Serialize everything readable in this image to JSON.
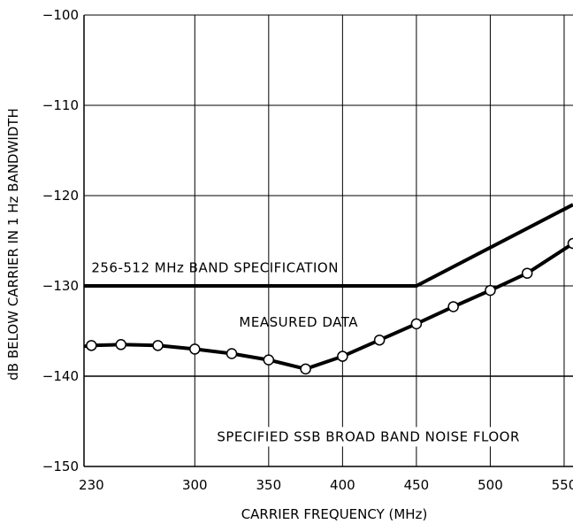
{
  "chart_data": {
    "type": "line",
    "xlabel": "CARRIER FREQUENCY (MHz)",
    "ylabel": "dB BELOW CARRIER IN 1 Hz BANDWIDTH",
    "xlim": [
      225,
      556
    ],
    "ylim": [
      -150,
      -100
    ],
    "x_ticks": [
      230,
      300,
      350,
      400,
      450,
      500,
      550
    ],
    "x_tick_labels": [
      "230",
      "300",
      "350",
      "400",
      "450",
      "500",
      "550"
    ],
    "y_ticks": [
      -100,
      -110,
      -120,
      -130,
      -140,
      -150
    ],
    "y_tick_labels": [
      "−100",
      "−110",
      "−120",
      "−130",
      "−140",
      "−150"
    ],
    "grid": true,
    "series": [
      {
        "name": "256-512 MHz BAND SPECIFICATION",
        "x": [
          225,
          450,
          556
        ],
        "y": [
          -130,
          -130,
          -121
        ]
      },
      {
        "name": "MEASURED DATA",
        "markers": true,
        "x": [
          225,
          230,
          250,
          275,
          300,
          325,
          350,
          375,
          400,
          425,
          450,
          475,
          500,
          525,
          556
        ],
        "y": [
          -136.7,
          -136.6,
          -136.5,
          -136.6,
          -137.0,
          -137.5,
          -138.2,
          -139.2,
          -137.8,
          -136.0,
          -134.2,
          -132.3,
          -130.5,
          -128.6,
          -125.3
        ]
      },
      {
        "name": "SPECIFIED SSB BROAD BAND NOISE FLOOR",
        "x": [
          225,
          556
        ],
        "y": [
          -140,
          -140
        ]
      }
    ],
    "annotations": [
      {
        "text": "256-512 MHz BAND SPECIFICATION",
        "x": 230,
        "y": -128.5
      },
      {
        "text": "MEASURED DATA",
        "x": 330,
        "y": -134.5
      },
      {
        "text": "SPECIFIED SSB BROAD BAND NOISE FLOOR",
        "x": 315,
        "y": -147.2
      }
    ]
  }
}
